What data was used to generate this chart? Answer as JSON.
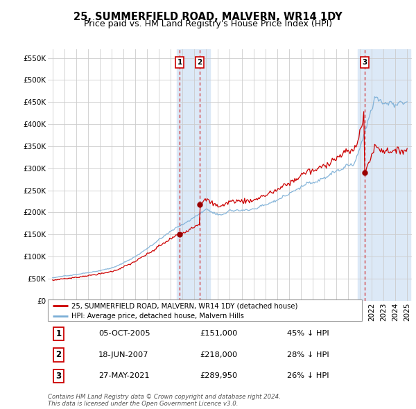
{
  "title": "25, SUMMERFIELD ROAD, MALVERN, WR14 1DY",
  "subtitle": "Price paid vs. HM Land Registry's House Price Index (HPI)",
  "ylim": [
    0,
    570000
  ],
  "yticks": [
    0,
    50000,
    100000,
    150000,
    200000,
    250000,
    300000,
    350000,
    400000,
    450000,
    500000,
    550000
  ],
  "ytick_labels": [
    "£0",
    "£50K",
    "£100K",
    "£150K",
    "£200K",
    "£250K",
    "£300K",
    "£350K",
    "£400K",
    "£450K",
    "£500K",
    "£550K"
  ],
  "sale_dates": [
    2005.76,
    2007.46,
    2021.4
  ],
  "sale_prices": [
    151000,
    218000,
    289950
  ],
  "sale_labels": [
    "1",
    "2",
    "3"
  ],
  "vline_color": "#cc0000",
  "vband_ranges": [
    [
      2005.5,
      2008.3
    ],
    [
      2020.8,
      2025.3
    ]
  ],
  "vband_color": "#dce9f7",
  "hpi_color": "#7aaed6",
  "sale_line_color": "#cc0000",
  "dot_color": "#990000",
  "legend_entries": [
    "25, SUMMERFIELD ROAD, MALVERN, WR14 1DY (detached house)",
    "HPI: Average price, detached house, Malvern Hills"
  ],
  "table_data": [
    [
      "1",
      "05-OCT-2005",
      "£151,000",
      "45% ↓ HPI"
    ],
    [
      "2",
      "18-JUN-2007",
      "£218,000",
      "28% ↓ HPI"
    ],
    [
      "3",
      "27-MAY-2021",
      "£289,950",
      "26% ↓ HPI"
    ]
  ],
  "footnote": "Contains HM Land Registry data © Crown copyright and database right 2024.\nThis data is licensed under the Open Government Licence v3.0.",
  "bg_color": "#ffffff",
  "grid_color": "#cccccc",
  "title_fontsize": 10.5,
  "subtitle_fontsize": 9,
  "tick_fontsize": 7.5
}
